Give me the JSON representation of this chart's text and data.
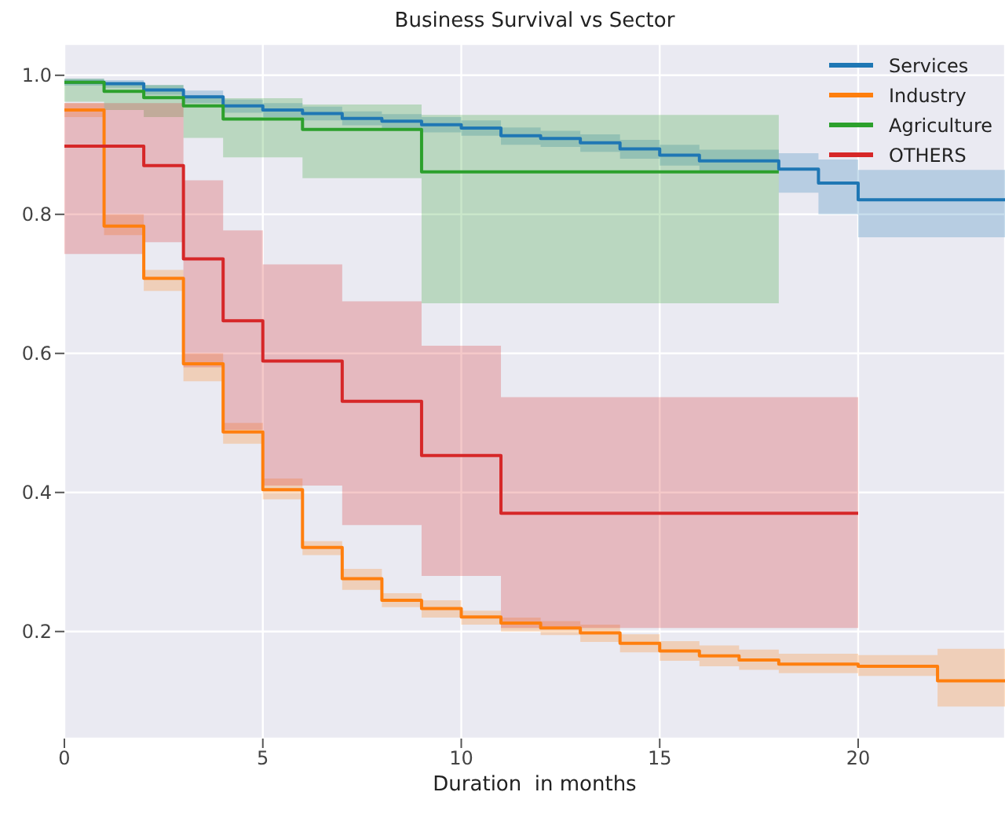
{
  "chart_data": {
    "type": "step",
    "title": "Business Survival vs Sector",
    "xlabel": "Duration  in months",
    "xlim": [
      0,
      23.7
    ],
    "ylim": [
      0.046,
      1.045
    ],
    "xticks": [
      0,
      5,
      10,
      15,
      20
    ],
    "yticks": [
      0.2,
      0.4,
      0.6,
      0.8,
      {
        "value": 1,
        "label": "1.0"
      }
    ],
    "grid": true,
    "legend": "top right",
    "series": [
      {
        "name": "Services",
        "color": "#1f77b4",
        "x": [
          0,
          1,
          2,
          3,
          4,
          5,
          6,
          7,
          8,
          9,
          10,
          11,
          12,
          13,
          14,
          15,
          16,
          18,
          19,
          20,
          23.7
        ],
        "values": [
          0.99,
          0.988,
          0.979,
          0.969,
          0.956,
          0.95,
          0.945,
          0.938,
          0.934,
          0.929,
          0.924,
          0.913,
          0.909,
          0.903,
          0.894,
          0.885,
          0.877,
          0.865,
          0.845,
          0.821,
          0.821
        ],
        "lower": [
          0.985,
          0.982,
          0.972,
          0.96,
          0.946,
          0.94,
          0.935,
          0.928,
          0.924,
          0.918,
          0.913,
          0.9,
          0.897,
          0.89,
          0.88,
          0.87,
          0.86,
          0.831,
          0.8,
          0.767,
          0.767
        ],
        "upper": [
          0.995,
          0.993,
          0.986,
          0.978,
          0.965,
          0.96,
          0.955,
          0.948,
          0.944,
          0.94,
          0.935,
          0.925,
          0.92,
          0.915,
          0.907,
          0.9,
          0.893,
          0.888,
          0.879,
          0.864,
          0.864
        ]
      },
      {
        "name": "Industry",
        "color": "#ff7f0e",
        "x": [
          0,
          1,
          2,
          3,
          4,
          5,
          6,
          7,
          8,
          9,
          10,
          11,
          12,
          13,
          14,
          15,
          16,
          17,
          18,
          20,
          22,
          23.7
        ],
        "values": [
          0.95,
          0.783,
          0.708,
          0.585,
          0.487,
          0.404,
          0.321,
          0.276,
          0.245,
          0.233,
          0.221,
          0.212,
          0.205,
          0.198,
          0.183,
          0.172,
          0.165,
          0.159,
          0.153,
          0.15,
          0.129,
          0.129
        ],
        "lower": [
          0.94,
          0.77,
          0.69,
          0.56,
          0.47,
          0.39,
          0.31,
          0.26,
          0.235,
          0.22,
          0.21,
          0.2,
          0.195,
          0.185,
          0.17,
          0.158,
          0.15,
          0.145,
          0.14,
          0.136,
          0.092,
          0.092
        ],
        "upper": [
          0.96,
          0.8,
          0.72,
          0.6,
          0.5,
          0.42,
          0.33,
          0.29,
          0.255,
          0.245,
          0.23,
          0.22,
          0.215,
          0.21,
          0.196,
          0.186,
          0.18,
          0.174,
          0.168,
          0.166,
          0.175,
          0.175
        ]
      },
      {
        "name": "Agriculture",
        "color": "#2ca02c",
        "x": [
          0,
          1,
          2,
          3,
          4,
          6,
          9,
          18
        ],
        "values": [
          0.99,
          0.977,
          0.968,
          0.956,
          0.937,
          0.922,
          0.861,
          0.861
        ],
        "lower": [
          0.962,
          0.95,
          0.94,
          0.91,
          0.882,
          0.852,
          0.672,
          0.672
        ],
        "upper": [
          0.995,
          0.99,
          0.986,
          0.969,
          0.967,
          0.958,
          0.943,
          0.943
        ]
      },
      {
        "name": "OTHERS",
        "color": "#d62728",
        "x": [
          0,
          2,
          3,
          4,
          5,
          7,
          9,
          11,
          20
        ],
        "values": [
          0.898,
          0.87,
          0.736,
          0.647,
          0.589,
          0.531,
          0.453,
          0.37,
          0.37
        ],
        "lower": [
          0.743,
          0.76,
          0.58,
          0.49,
          0.41,
          0.353,
          0.28,
          0.205,
          0.205
        ],
        "upper": [
          0.96,
          0.96,
          0.849,
          0.777,
          0.728,
          0.675,
          0.611,
          0.537,
          0.537
        ]
      }
    ]
  }
}
